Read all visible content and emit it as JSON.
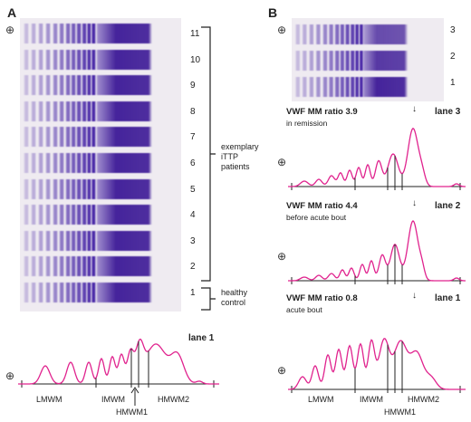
{
  "panel_a": {
    "letter": "A",
    "plus_symbol": "⊕",
    "lane_numbers": [
      "11",
      "10",
      "9",
      "8",
      "7",
      "6",
      "5",
      "4",
      "3",
      "2",
      "1"
    ],
    "group_patients": [
      "exemplary",
      "iTTP",
      "patients"
    ],
    "group_control": [
      "healthy",
      "control"
    ],
    "densitogram": {
      "lane_label": "lane 1",
      "segment_labels": {
        "lmwm": "LMWM",
        "imwm": "IMWM",
        "hmwm1": "HMWM1",
        "hmwm2": "HMWM2"
      }
    }
  },
  "panel_b": {
    "letter": "B",
    "plus_symbol": "⊕",
    "lane_numbers": [
      "3",
      "2",
      "1"
    ],
    "plots": [
      {
        "lane_label": "lane 3",
        "ratio": "VWF MM ratio 3.9",
        "status": "in remission",
        "arrow": "↓"
      },
      {
        "lane_label": "lane 2",
        "ratio": "VWF MM ratio 4.4",
        "status": "before acute bout",
        "arrow": "↓"
      },
      {
        "lane_label": "lane 1",
        "ratio": "VWF MM ratio 0.8",
        "status": "acute bout",
        "arrow": "↓"
      }
    ],
    "segment_labels": {
      "lmwm": "LMWM",
      "imwm": "IMWM",
      "hmwm1": "HMWM1",
      "hmwm2": "HMWM2"
    }
  },
  "colors": {
    "band": "#4b2aa8",
    "curve": "#e0238e",
    "gel_bg": "#efebf1"
  }
}
